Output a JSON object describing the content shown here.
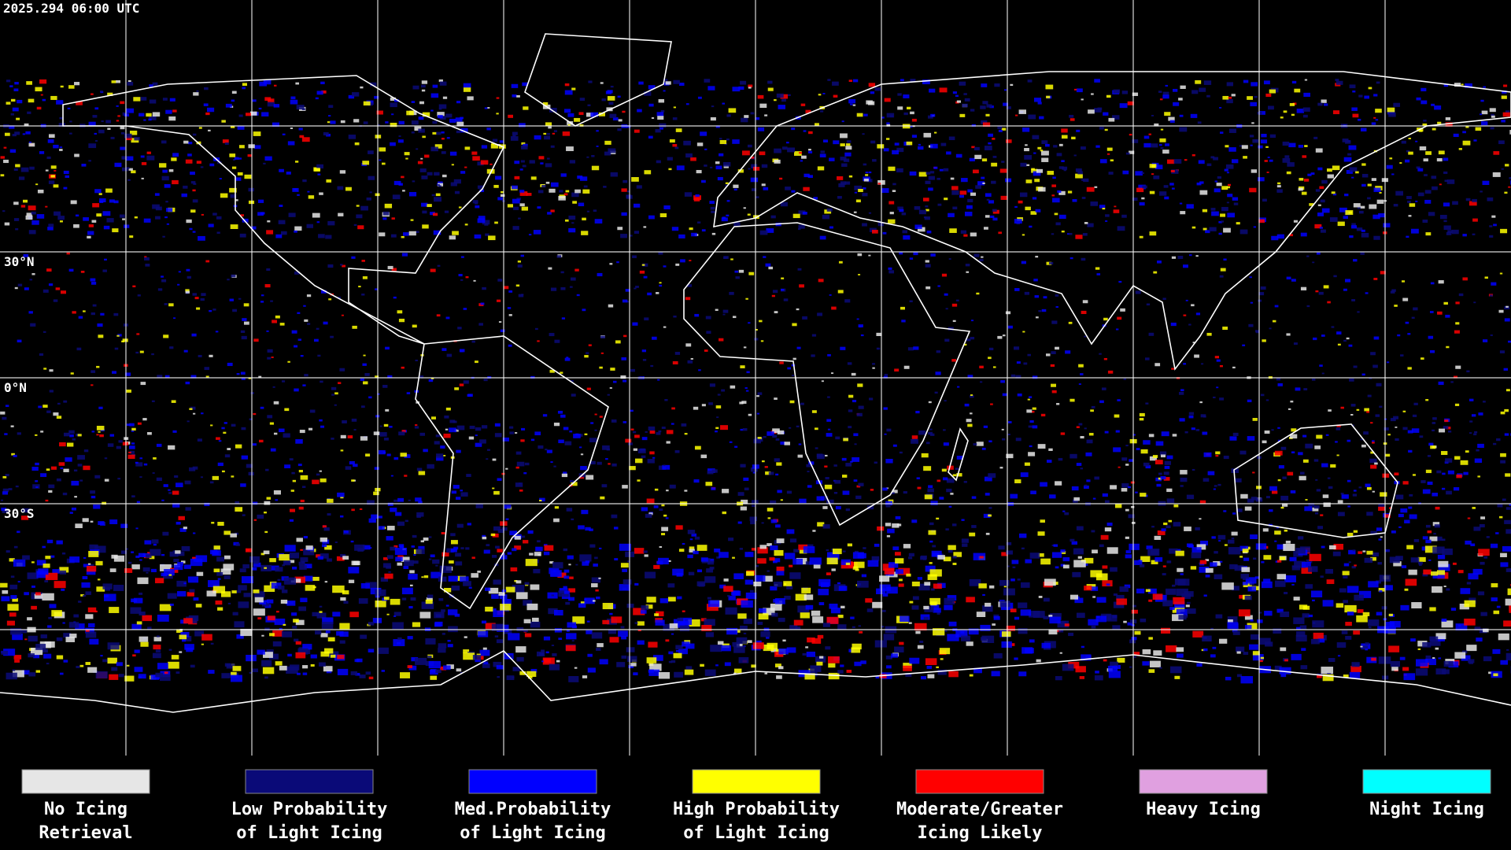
{
  "header": {
    "timestamp": "2025.294 06:00 UTC"
  },
  "map": {
    "latitude_labels": [
      "30°N",
      "0°N",
      "30°S"
    ]
  },
  "legend": {
    "items": [
      {
        "lines": [
          "No Icing",
          "Retrieval"
        ],
        "color": "#e6e6e6"
      },
      {
        "lines": [
          "Low Probability",
          "of Light Icing"
        ],
        "color": "#0a0a78"
      },
      {
        "lines": [
          "Med.Probability",
          "of Light Icing"
        ],
        "color": "#0000ff"
      },
      {
        "lines": [
          "High Probability",
          "of Light Icing"
        ],
        "color": "#ffff00"
      },
      {
        "lines": [
          "Moderate/Greater",
          "Icing Likely"
        ],
        "color": "#ff0000"
      },
      {
        "lines": [
          "Heavy Icing"
        ],
        "color": "#e0a0e0"
      },
      {
        "lines": [
          "Night Icing"
        ],
        "color": "#00ffff"
      }
    ]
  }
}
